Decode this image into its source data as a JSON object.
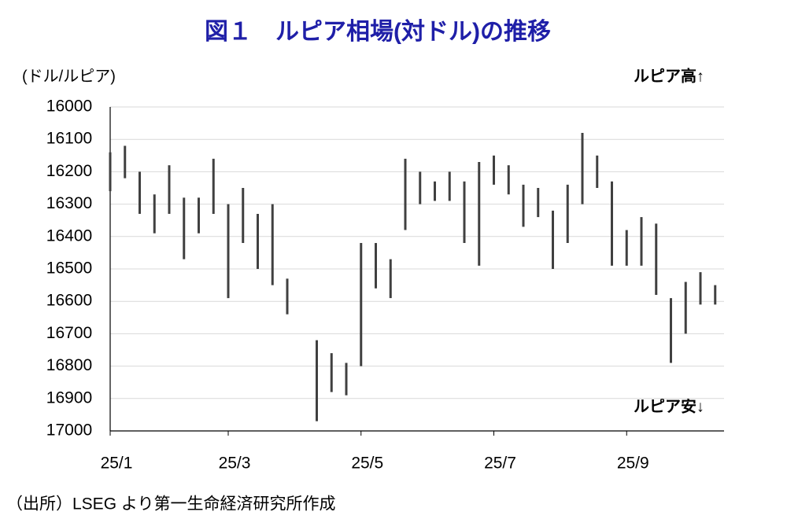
{
  "chart_data": {
    "type": "range",
    "title": "図１　ルピア相場(対ドル)の推移",
    "y_label": "(ドル/ルピア)",
    "annotations": [
      "ルピア高↑",
      "ルピア安↓"
    ],
    "source": "（出所）LSEG より第一生命経済研究所作成",
    "categories": [
      "25/1",
      null,
      null,
      null,
      null,
      null,
      null,
      null,
      "25/3",
      null,
      null,
      null,
      null,
      null,
      null,
      null,
      null,
      "25/5",
      null,
      null,
      null,
      null,
      null,
      null,
      null,
      null,
      "25/7",
      null,
      null,
      null,
      null,
      null,
      null,
      null,
      null,
      "25/9",
      null,
      null,
      null,
      null,
      null,
      null
    ],
    "series": [
      {
        "color": "#404040",
        "low": [
          16140,
          16120,
          16200,
          16270,
          16180,
          16280,
          16280,
          16160,
          16300,
          16250,
          16330,
          16300,
          16530,
          null,
          16720,
          16760,
          16790,
          16420,
          16420,
          16470,
          16160,
          16200,
          16230,
          16200,
          16230,
          16170,
          16150,
          16180,
          16240,
          16250,
          16320,
          16240,
          16080,
          16150,
          16230,
          16380,
          16340,
          16360,
          16590,
          16540,
          16510,
          16550
        ],
        "high": [
          16260,
          16220,
          16330,
          16390,
          16330,
          16470,
          16390,
          16330,
          16590,
          16420,
          16500,
          16550,
          16640,
          null,
          16970,
          16880,
          16890,
          16800,
          16560,
          16590,
          16380,
          16300,
          16290,
          16290,
          16420,
          16490,
          16240,
          16270,
          16370,
          16340,
          16500,
          16420,
          16300,
          16250,
          16490,
          16490,
          16490,
          16580,
          16790,
          16700,
          16610,
          16610
        ]
      }
    ],
    "ylim": [
      16000,
      17000
    ],
    "y_inverted": true,
    "yticks": [
      16000,
      16100,
      16200,
      16300,
      16400,
      16500,
      16600,
      16700,
      16800,
      16900,
      17000
    ],
    "grid": true
  }
}
